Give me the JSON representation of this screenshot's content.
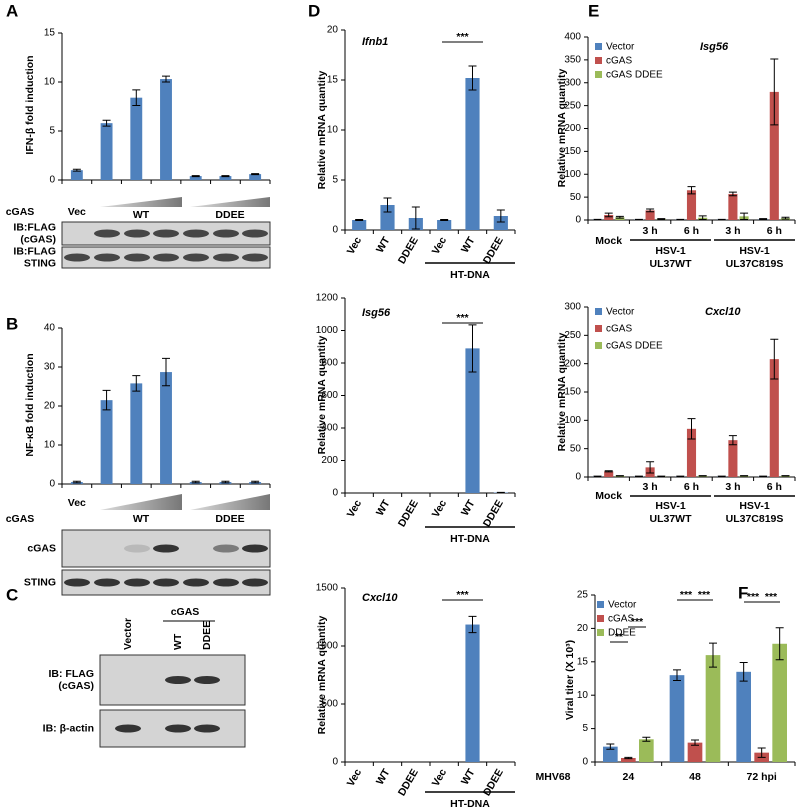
{
  "chart_data": [
    {
      "type": "bar",
      "panel_label": "A",
      "y_label": "IFN-β  fold induction",
      "row_label": "cGAS",
      "categories": [
        "Vec",
        null,
        null,
        null,
        null,
        null,
        null
      ],
      "values": [
        1,
        5.8,
        8.4,
        10.3,
        0.4,
        0.4,
        0.6
      ],
      "errors": [
        0.1,
        0.3,
        0.8,
        0.3,
        0.05,
        0.05,
        0.05
      ],
      "color": "#4f81bd",
      "ylim": [
        0,
        15
      ],
      "yticks": [
        0,
        5,
        10,
        15
      ],
      "group_labels": [
        "WT",
        "DDEE"
      ],
      "blot_labels": [
        [
          "IB:FLAG",
          "(cGAS)"
        ],
        [
          "IB:FLAG",
          "STING"
        ]
      ]
    },
    {
      "type": "bar",
      "panel_label": "B",
      "y_label": "NF-κB  fold induction",
      "row_label": "cGAS",
      "categories": [
        "Vec",
        null,
        null,
        null,
        null,
        null,
        null
      ],
      "values": [
        0.5,
        21.5,
        25.8,
        28.7,
        0.5,
        0.5,
        0.5
      ],
      "errors": [
        0.2,
        2.5,
        2,
        3.5,
        0.2,
        0.2,
        0.2
      ],
      "color": "#4f81bd",
      "ylim": [
        0,
        40
      ],
      "yticks": [
        0,
        10,
        20,
        30,
        40
      ],
      "group_labels": [
        "WT",
        "DDEE"
      ],
      "blot_labels": [
        [
          "cGAS"
        ],
        [
          "STING"
        ]
      ]
    },
    {
      "type": "blot",
      "panel_label": "C",
      "header": "cGAS",
      "lanes": [
        "Vector",
        "WT",
        "DDEE"
      ],
      "blot_labels": [
        [
          "IB: FLAG",
          "(cGAS)"
        ],
        [
          "IB: β-actin"
        ]
      ]
    },
    {
      "type": "bar",
      "panel_label": "D",
      "title": "Ifnb1",
      "y_label": "Relative mRNA quantity",
      "categories": [
        "Vec",
        "WT",
        "DDEE",
        "Vec",
        "WT",
        "DDEE"
      ],
      "values": [
        1,
        2.5,
        1.2,
        1,
        15.2,
        1.4
      ],
      "errors": [
        0.05,
        0.7,
        1.1,
        0.05,
        1.2,
        0.6
      ],
      "color": "#4f81bd",
      "ylim": [
        0,
        20
      ],
      "yticks": [
        0,
        5,
        10,
        15,
        20
      ],
      "group_labels": [
        "HT-DNA"
      ],
      "annotations": [
        "***"
      ]
    },
    {
      "type": "bar",
      "title": "Isg56",
      "y_label": "Relative mRNA quantity",
      "categories": [
        "Vec",
        "WT",
        "DDEE",
        "Vec",
        "WT",
        "DDEE"
      ],
      "values": [
        0,
        0,
        0,
        0,
        890,
        3
      ],
      "errors": [
        0,
        0,
        0,
        0,
        145,
        1
      ],
      "color": "#4f81bd",
      "ylim": [
        0,
        1200
      ],
      "yticks": [
        0,
        200,
        400,
        600,
        800,
        1000,
        1200
      ],
      "group_labels": [
        "HT-DNA"
      ],
      "annotations": [
        "***"
      ]
    },
    {
      "type": "bar",
      "title": "Cxcl10",
      "y_label": "Relative mRNA quantity",
      "categories": [
        "Vec",
        "WT",
        "DDEE",
        "Vec",
        "WT",
        "DDEE"
      ],
      "values": [
        0,
        0,
        0,
        0,
        1185,
        0
      ],
      "errors": [
        0,
        0,
        0,
        0,
        70,
        0
      ],
      "color": "#4f81bd",
      "ylim": [
        0,
        1500
      ],
      "yticks": [
        0,
        500,
        1000,
        1500
      ],
      "group_labels": [
        "HT-DNA"
      ],
      "annotations": [
        "***"
      ]
    },
    {
      "type": "bar",
      "panel_label": "E",
      "title": "Isg56",
      "y_label": "Relative mRNA quantity",
      "categories": [
        "Mock",
        "3 h",
        "6 h",
        "3 h",
        "6 h"
      ],
      "group_labels": [
        [
          "HSV-1",
          "UL37WT"
        ],
        [
          "HSV-1",
          "UL37C819S"
        ]
      ],
      "series": [
        {
          "name": "Vector",
          "color": "#4f81bd",
          "values": [
            1,
            1,
            1,
            1,
            2
          ],
          "errors": [
            0.5,
            0.5,
            0.5,
            0.5,
            1
          ]
        },
        {
          "name": "cGAS",
          "color": "#c0504d",
          "values": [
            11,
            21,
            65,
            57,
            280
          ],
          "errors": [
            4,
            3,
            8,
            4,
            72
          ]
        },
        {
          "name": "cGAS DDEE",
          "color": "#9bbb59",
          "values": [
            6,
            2,
            5,
            8,
            4
          ],
          "errors": [
            2,
            1,
            4,
            7,
            2
          ]
        }
      ],
      "ylim": [
        0,
        400
      ],
      "yticks": [
        0,
        50,
        100,
        150,
        200,
        250,
        300,
        350,
        400
      ],
      "legend": "top-left"
    },
    {
      "type": "bar",
      "title": "Cxcl10",
      "y_label": "Relative mRNA quantity",
      "categories": [
        "Mock",
        "3 h",
        "6 h",
        "3 h",
        "6 h"
      ],
      "group_labels": [
        [
          "HSV-1",
          "UL37WT"
        ],
        [
          "HSV-1",
          "UL37C819S"
        ]
      ],
      "series": [
        {
          "name": "Vector",
          "color": "#4f81bd",
          "values": [
            1,
            1,
            1,
            1,
            1
          ],
          "errors": [
            0.5,
            0.5,
            0.5,
            0.5,
            0.5
          ]
        },
        {
          "name": "cGAS",
          "color": "#c0504d",
          "values": [
            10,
            17,
            85,
            65,
            208
          ],
          "errors": [
            1,
            10,
            18,
            8,
            35
          ]
        },
        {
          "name": "cGAS DDEE",
          "color": "#9bbb59",
          "values": [
            2,
            1,
            2,
            2,
            2
          ],
          "errors": [
            0.5,
            0.5,
            0.5,
            0.5,
            0.5
          ]
        }
      ],
      "ylim": [
        0,
        300
      ],
      "yticks": [
        0,
        50,
        100,
        150,
        200,
        250,
        300
      ],
      "legend": "top-left"
    },
    {
      "type": "bar",
      "panel_label": "F",
      "y_label": "Viral titer (X 10³)",
      "x_label": "MHV68",
      "categories": [
        "24",
        "48",
        "72 hpi"
      ],
      "series": [
        {
          "name": "Vector",
          "color": "#4f81bd",
          "values": [
            2.3,
            13,
            13.5
          ],
          "errors": [
            0.4,
            0.8,
            1.4
          ]
        },
        {
          "name": "cGAS",
          "color": "#c0504d",
          "values": [
            0.6,
            2.9,
            1.4
          ],
          "errors": [
            0.1,
            0.4,
            0.7
          ]
        },
        {
          "name": "DDEE",
          "color": "#9bbb59",
          "values": [
            3.4,
            16,
            17.7
          ],
          "errors": [
            0.3,
            1.8,
            2.4
          ]
        }
      ],
      "ylim": [
        0,
        25
      ],
      "yticks": [
        0,
        5,
        10,
        15,
        20,
        25
      ],
      "legend": "top-left",
      "annotations": [
        "**",
        "***",
        "***",
        "***",
        "***",
        "***"
      ]
    }
  ]
}
